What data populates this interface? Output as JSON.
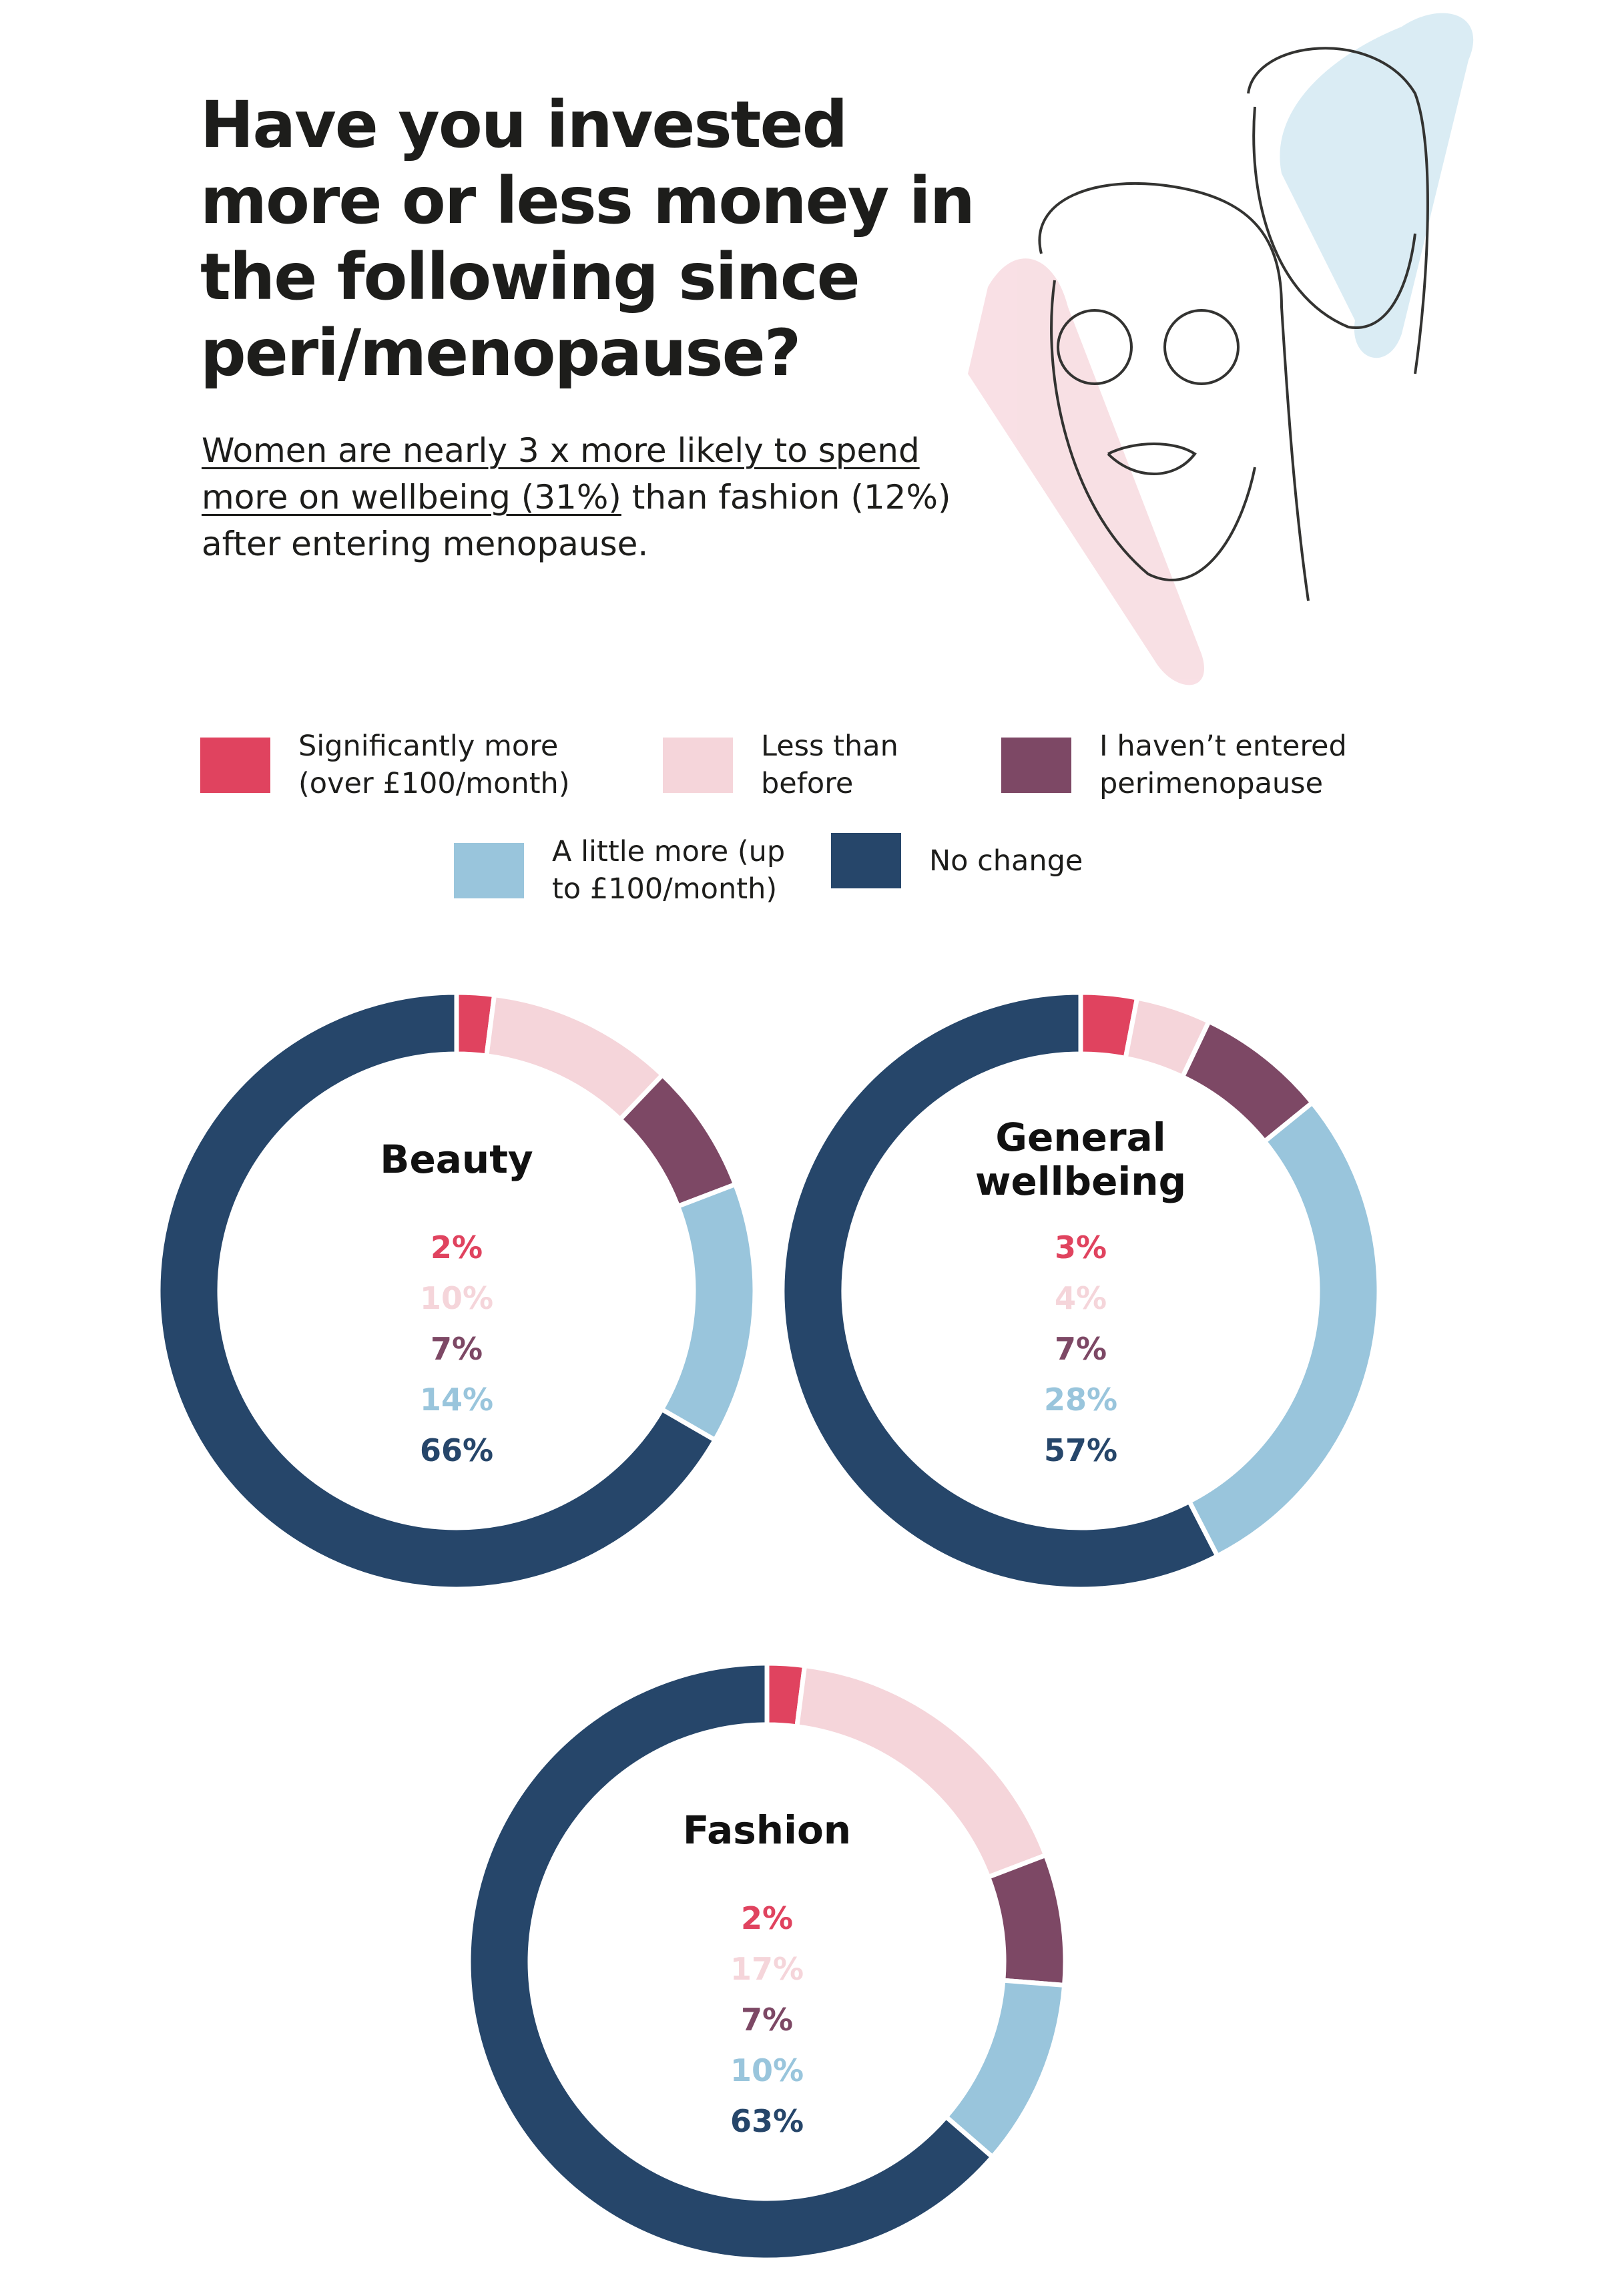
{
  "title": "Have you invested more or less money in the following since peri/menopause?",
  "subtitle": {
    "highlight": "Women are nearly 3 x more likely to spend more on wellbeing (31%)",
    "rest": " than fashion (12%) after entering menopause."
  },
  "legend": {
    "labels": [
      "Significantly more (over £100/month)",
      "Less than before",
      "I haven’t entered perimenopause",
      "A little more (up to £100/month)",
      "No change"
    ],
    "colors": [
      "#e0435f",
      "#f5d5da",
      "#7d4865",
      "#99c5dc",
      "#26466a"
    ]
  },
  "chart_data": [
    {
      "type": "donut",
      "title": "Beauty",
      "values": [
        2,
        10,
        7,
        14,
        66
      ],
      "value_labels": [
        "2%",
        "10%",
        "7%",
        "14%",
        "66%"
      ]
    },
    {
      "type": "donut",
      "title": "General wellbeing",
      "values": [
        3,
        4,
        7,
        28,
        57
      ],
      "value_labels": [
        "3%",
        "4%",
        "7%",
        "28%",
        "57%"
      ]
    },
    {
      "type": "donut",
      "title": "Fashion",
      "values": [
        2,
        17,
        7,
        10,
        63
      ],
      "value_labels": [
        "2%",
        "17%",
        "7%",
        "10%",
        "63%"
      ]
    }
  ]
}
